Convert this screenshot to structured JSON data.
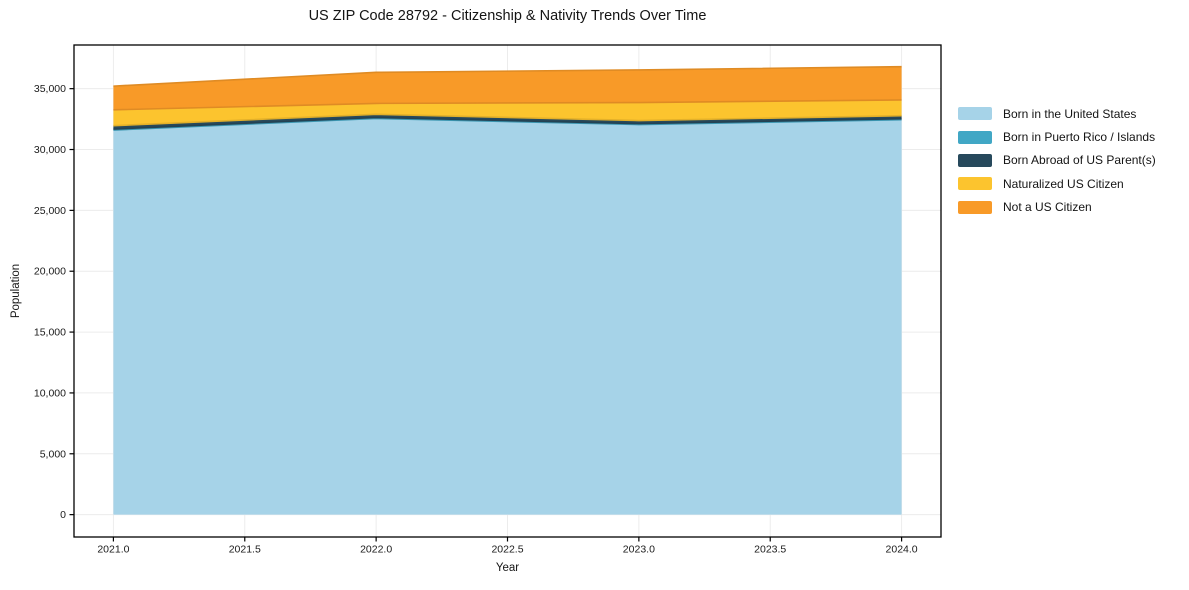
{
  "chart_data": {
    "type": "area",
    "stacked": true,
    "title": "US ZIP Code 28792 - Citizenship & Nativity Trends Over Time",
    "xlabel": "Year",
    "ylabel": "Population",
    "x": [
      2021,
      2022,
      2023,
      2024
    ],
    "series": [
      {
        "name": "Born in the United States",
        "color": "#a6d3e8",
        "values": [
          31600,
          32550,
          32050,
          32450
        ]
      },
      {
        "name": "Born in Puerto Rico / Islands",
        "color": "#41a7c5",
        "values": [
          80,
          80,
          80,
          80
        ]
      },
      {
        "name": "Born Abroad of US Parent(s)",
        "color": "#27495c",
        "values": [
          280,
          260,
          250,
          250
        ]
      },
      {
        "name": "Naturalized US Citizen",
        "color": "#fcc42e",
        "values": [
          1300,
          900,
          1480,
          1290
        ]
      },
      {
        "name": "Not a US Citizen",
        "color": "#f89a28",
        "values": [
          1950,
          2550,
          2680,
          2740
        ]
      }
    ],
    "totals": [
      35210,
      36340,
      36540,
      36810
    ],
    "xlim": [
      2020.85,
      2024.15
    ],
    "ylim": [
      -1838,
      38588
    ],
    "xticks": {
      "values": [
        2021.0,
        2021.5,
        2022.0,
        2022.5,
        2023.0,
        2023.5,
        2024.0
      ],
      "labels": [
        "2021.0",
        "2021.5",
        "2022.0",
        "2022.5",
        "2023.0",
        "2023.5",
        "2024.0"
      ]
    },
    "yticks": {
      "values": [
        0,
        5000,
        10000,
        15000,
        20000,
        25000,
        30000,
        35000
      ],
      "labels": [
        "0",
        "5,000",
        "10,000",
        "15,000",
        "20,000",
        "25,000",
        "30,000",
        "35,000"
      ]
    },
    "grid": true,
    "legend_position": "right outside",
    "colors": {
      "gridline": "#ececec",
      "spine": "#000000",
      "tick_text": "#1a1a1a",
      "background": "#ffffff"
    }
  }
}
